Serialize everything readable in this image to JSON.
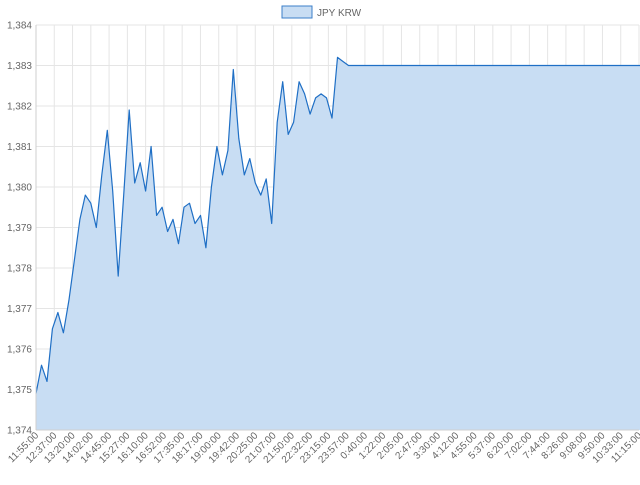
{
  "chart_data": {
    "type": "area",
    "legend_position": "top-center",
    "grid": true,
    "colors": {
      "line": "#1f6fc5",
      "fill": "#c8ddf3",
      "legend_fill": "#c8ddf3",
      "legend_border": "#3b7fc9"
    },
    "ylim": [
      1374,
      1384
    ],
    "y_ticks": [
      "1,374",
      "1,375",
      "1,376",
      "1,377",
      "1,378",
      "1,379",
      "1,380",
      "1,381",
      "1,382",
      "1,383",
      "1,384"
    ],
    "x_tick_labels": [
      "11:55:00",
      "12:37:00",
      "13:20:00",
      "14:02:00",
      "14:45:00",
      "15:27:00",
      "16:10:00",
      "16:52:00",
      "17:35:00",
      "18:17:00",
      "19:00:00",
      "19:42:00",
      "20:25:00",
      "21:07:00",
      "21:50:00",
      "22:32:00",
      "23:15:00",
      "23:57:00",
      "0:40:00",
      "1:22:00",
      "2:05:00",
      "2:47:00",
      "3:30:00",
      "4:12:00",
      "4:55:00",
      "5:37:00",
      "6:20:00",
      "7:02:00",
      "7:44:00",
      "8:26:00",
      "9:08:00",
      "9:50:00",
      "10:33:00",
      "11:15:00"
    ],
    "series": [
      {
        "name": "JPY KRW",
        "x_index": [
          0,
          0.3,
          0.6,
          0.9,
          1.2,
          1.5,
          1.8,
          2.1,
          2.4,
          2.7,
          3.0,
          3.3,
          3.6,
          3.9,
          4.2,
          4.5,
          4.8,
          5.1,
          5.4,
          5.7,
          6.0,
          6.3,
          6.6,
          6.9,
          7.2,
          7.5,
          7.8,
          8.1,
          8.4,
          8.7,
          9.0,
          9.3,
          9.6,
          9.9,
          10.2,
          10.5,
          10.8,
          11.1,
          11.4,
          11.7,
          12.0,
          12.3,
          12.6,
          12.9,
          13.2,
          13.5,
          13.8,
          14.1,
          14.4,
          14.7,
          15.0,
          15.3,
          15.6,
          15.9,
          16.2,
          16.5,
          16.8,
          17.1,
          17.4,
          17.7,
          18.0,
          18.3,
          18.6,
          18.9,
          19.2,
          19.5,
          19.8,
          20.1,
          20.4,
          20.7,
          21.0,
          21.3,
          21.6,
          21.9,
          22.2,
          22.5,
          22.8,
          23.1,
          23.4,
          23.7,
          24.0,
          24.3,
          24.6,
          24.9,
          25.2,
          25.5,
          33.9
        ],
        "values": [
          1374.9,
          1375.6,
          1375.2,
          1376.5,
          1376.9,
          1376.4,
          1377.2,
          1378.2,
          1379.2,
          1379.8,
          1379.6,
          1379.0,
          1380.3,
          1381.4,
          1379.9,
          1377.8,
          1379.8,
          1381.9,
          1380.1,
          1380.6,
          1379.9,
          1381.0,
          1379.3,
          1379.5,
          1378.9,
          1379.2,
          1378.6,
          1379.5,
          1379.6,
          1379.1,
          1379.3,
          1378.5,
          1380.0,
          1381.0,
          1380.3,
          1380.9,
          1382.9,
          1381.2,
          1380.3,
          1380.7,
          1380.1,
          1379.8,
          1380.2,
          1379.1,
          1381.6,
          1382.6,
          1381.3,
          1381.6,
          1382.6,
          1382.3,
          1381.8,
          1382.2,
          1382.3,
          1382.2,
          1381.7,
          1383.2,
          1383.1,
          1383.0,
          1383.0,
          1383.0,
          1383.0,
          1383.0,
          1383.0,
          1383.0,
          1383.0,
          1383.0,
          1383.0,
          1383.0,
          1383.0,
          1383.0,
          1383.0,
          1383.0,
          1383.0,
          1383.0,
          1383.0,
          1383.0,
          1383.0,
          1383.0,
          1383.0,
          1383.0,
          1383.0,
          1383.0,
          1383.0,
          1383.0,
          1383.0,
          1383.0,
          1383.0
        ]
      }
    ]
  }
}
